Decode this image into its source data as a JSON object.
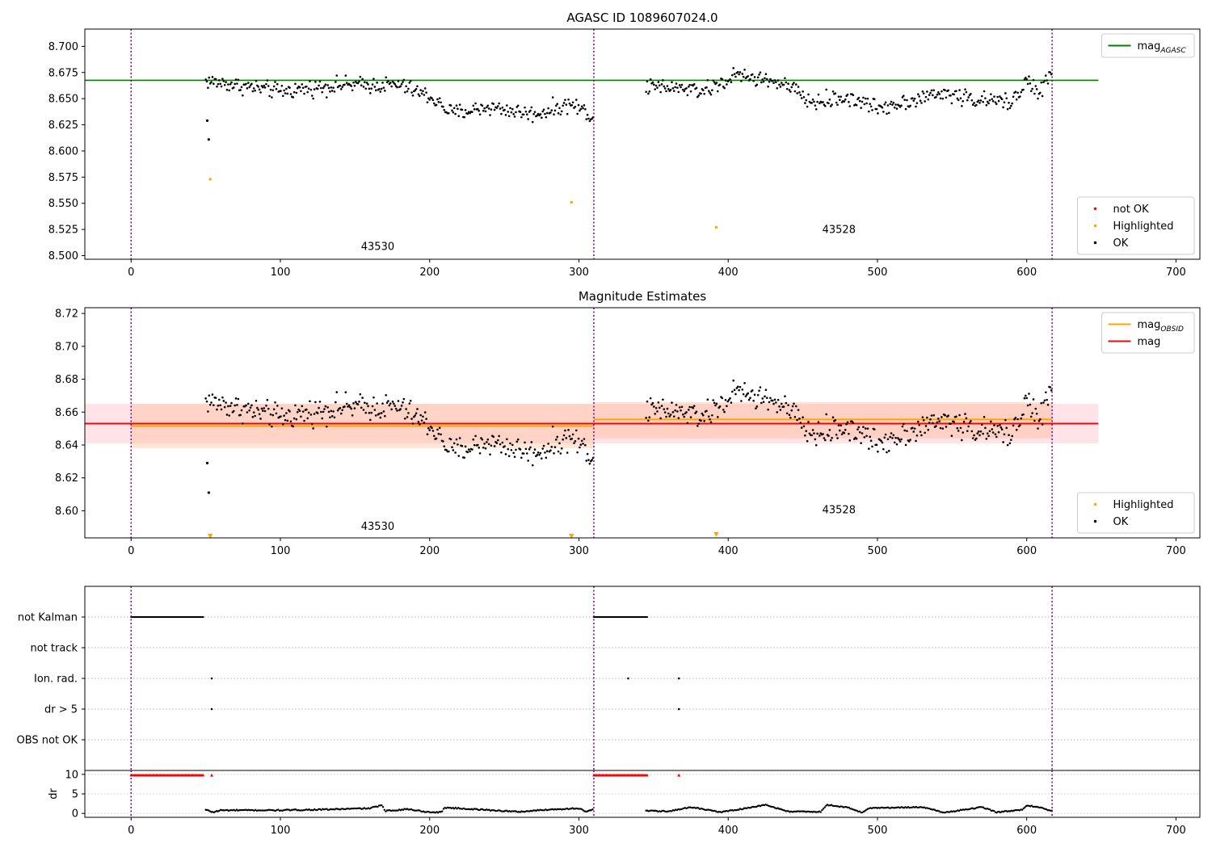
{
  "chart_data": [
    {
      "id": "top",
      "type": "scatter",
      "title": "AGASC ID 1089607024.0",
      "xlim": [
        -31,
        716
      ],
      "ylim": [
        8.4965,
        8.7165
      ],
      "x_ticks": [
        0,
        100,
        200,
        300,
        400,
        500,
        600,
        700
      ],
      "y_ticks": [
        8.5,
        8.525,
        8.55,
        8.575,
        8.6,
        8.625,
        8.65,
        8.675,
        8.7
      ],
      "y_tick_decimals": 3,
      "obs_boundaries": [
        0,
        310,
        617
      ],
      "obs_labels": [
        {
          "text": "43530",
          "x": 154,
          "y": 8.5055
        },
        {
          "text": "43528",
          "x": 463,
          "y": 8.5215
        }
      ],
      "lines": [
        {
          "name": "mag_AGASC",
          "y": 8.6675,
          "x_range": [
            -31,
            648
          ],
          "color": "#008000"
        }
      ],
      "bands": [],
      "highlighted_points": [
        [
          53,
          8.573
        ],
        [
          295,
          8.551
        ],
        [
          392,
          8.527
        ]
      ],
      "outliers_ok": [
        [
          51,
          8.629
        ],
        [
          52,
          8.611
        ]
      ],
      "highlighted_style": "dot",
      "legends": [
        {
          "position": "top-right",
          "items": [
            {
              "label": "mag",
              "sub": "AGASC",
              "marker": "line",
              "color": "#008000"
            }
          ]
        },
        {
          "position": "bottom-right",
          "items": [
            {
              "label": "not OK",
              "marker": "dot",
              "color": "#ff0000"
            },
            {
              "label": "Highlighted",
              "marker": "dot",
              "color": "#ffa500"
            },
            {
              "label": "OK",
              "marker": "dot",
              "color": "#000000"
            }
          ]
        }
      ],
      "series": [
        {
          "x_range": [
            50,
            310
          ],
          "knots": [
            [
              50,
              8.667
            ],
            [
              100,
              8.657
            ],
            [
              140,
              8.663
            ],
            [
              180,
              8.663
            ],
            [
              200,
              8.652
            ],
            [
              215,
              8.636
            ],
            [
              240,
              8.642
            ],
            [
              270,
              8.635
            ],
            [
              295,
              8.645
            ],
            [
              310,
              8.633
            ]
          ],
          "noise": 0.0055
        },
        {
          "x_range": [
            345,
            617
          ],
          "knots": [
            [
              345,
              8.661
            ],
            [
              365,
              8.66
            ],
            [
              385,
              8.657
            ],
            [
              405,
              8.672
            ],
            [
              430,
              8.667
            ],
            [
              445,
              8.658
            ],
            [
              455,
              8.646
            ],
            [
              480,
              8.651
            ],
            [
              500,
              8.641
            ],
            [
              520,
              8.648
            ],
            [
              545,
              8.655
            ],
            [
              570,
              8.648
            ],
            [
              590,
              8.647
            ],
            [
              600,
              8.668
            ],
            [
              608,
              8.654
            ],
            [
              617,
              8.676
            ]
          ],
          "noise": 0.0055
        }
      ]
    },
    {
      "id": "middle",
      "type": "scatter",
      "title": "Magnitude Estimates",
      "xlim": [
        -31,
        716
      ],
      "ylim": [
        8.5835,
        8.7235
      ],
      "x_ticks": [
        0,
        100,
        200,
        300,
        400,
        500,
        600,
        700
      ],
      "y_ticks": [
        8.6,
        8.62,
        8.64,
        8.66,
        8.68,
        8.7,
        8.72
      ],
      "y_tick_decimals": 2,
      "obs_boundaries": [
        0,
        310,
        617
      ],
      "obs_labels": [
        {
          "text": "43530",
          "x": 154,
          "y": 8.5885
        },
        {
          "text": "43528",
          "x": 463,
          "y": 8.5985
        }
      ],
      "lines": [
        {
          "name": "mag_OBSID_1",
          "y": 8.6515,
          "x_range": [
            0,
            310
          ],
          "color": "#ffa500"
        },
        {
          "name": "mag_OBSID_2",
          "y": 8.6555,
          "x_range": [
            310,
            617
          ],
          "color": "#ffa500"
        },
        {
          "name": "mag",
          "y": 8.653,
          "x_range": [
            -31,
            648
          ],
          "color": "#ff0000"
        }
      ],
      "bands": [
        {
          "y_range": [
            8.641,
            8.665
          ],
          "x_range": [
            -31,
            648
          ],
          "color": "#ffc0cb",
          "opacity": 0.45
        },
        {
          "y_range": [
            8.638,
            8.665
          ],
          "x_range": [
            0,
            310
          ],
          "color": "#ffb080",
          "opacity": 0.32
        },
        {
          "y_range": [
            8.644,
            8.666
          ],
          "x_range": [
            310,
            617
          ],
          "color": "#ffb080",
          "opacity": 0.35
        }
      ],
      "highlighted_points": [
        [
          53,
          8.5845
        ],
        [
          295,
          8.5845
        ],
        [
          392,
          8.5855
        ]
      ],
      "outliers_ok": [
        [
          51,
          8.629
        ],
        [
          52,
          8.611
        ]
      ],
      "highlighted_style": "triangle",
      "legends": [
        {
          "position": "top-right",
          "items": [
            {
              "label": "mag",
              "sub": "OBSID",
              "marker": "line",
              "color": "#ffa500"
            },
            {
              "label": "mag",
              "marker": "line",
              "color": "#ff0000"
            }
          ]
        },
        {
          "position": "bottom-right",
          "items": [
            {
              "label": "Highlighted",
              "marker": "dot",
              "color": "#ffa500"
            },
            {
              "label": "OK",
              "marker": "dot",
              "color": "#000000"
            }
          ]
        }
      ],
      "series": [
        {
          "x_range": [
            50,
            310
          ],
          "knots": [
            [
              50,
              8.667
            ],
            [
              100,
              8.657
            ],
            [
              140,
              8.663
            ],
            [
              180,
              8.663
            ],
            [
              200,
              8.652
            ],
            [
              215,
              8.636
            ],
            [
              240,
              8.642
            ],
            [
              270,
              8.635
            ],
            [
              295,
              8.645
            ],
            [
              310,
              8.633
            ]
          ],
          "noise": 0.0055
        },
        {
          "x_range": [
            345,
            617
          ],
          "knots": [
            [
              345,
              8.661
            ],
            [
              365,
              8.66
            ],
            [
              385,
              8.657
            ],
            [
              405,
              8.672
            ],
            [
              430,
              8.667
            ],
            [
              445,
              8.658
            ],
            [
              455,
              8.646
            ],
            [
              480,
              8.651
            ],
            [
              500,
              8.641
            ],
            [
              520,
              8.648
            ],
            [
              545,
              8.655
            ],
            [
              570,
              8.648
            ],
            [
              590,
              8.647
            ],
            [
              600,
              8.668
            ],
            [
              608,
              8.654
            ],
            [
              617,
              8.676
            ]
          ],
          "noise": 0.0055
        }
      ]
    },
    {
      "id": "flags",
      "type": "scatter",
      "xlim": [
        -31,
        716
      ],
      "categories": [
        "not Kalman",
        "not track",
        "Ion. rad.",
        "dr > 5",
        "OBS not OK"
      ],
      "obs_boundaries": [
        0,
        310,
        617
      ],
      "segments": [
        {
          "category": "not Kalman",
          "x_range": [
            0,
            49
          ]
        },
        {
          "category": "not Kalman",
          "x_range": [
            310,
            346
          ]
        }
      ],
      "points": [
        {
          "category": "Ion. rad.",
          "x": 54
        },
        {
          "category": "Ion. rad.",
          "x": 333
        },
        {
          "category": "Ion. rad.",
          "x": 367
        },
        {
          "category": "dr > 5",
          "x": 54
        },
        {
          "category": "dr > 5",
          "x": 367
        }
      ]
    },
    {
      "id": "dr",
      "type": "scatter",
      "xlim": [
        -31,
        716
      ],
      "ylim": [
        -1,
        11
      ],
      "ylabel": "dr",
      "x_ticks": [
        0,
        100,
        200,
        300,
        400,
        500,
        600,
        700
      ],
      "y_ticks": [
        0,
        5,
        10
      ],
      "obs_boundaries": [
        0,
        310,
        617
      ],
      "clipped_segments": [
        {
          "x_range": [
            0,
            49
          ],
          "y": 9.8,
          "color": "#ff0000"
        },
        {
          "x_range": [
            310,
            346
          ],
          "y": 9.8,
          "color": "#ff0000"
        }
      ],
      "clipped_points": [
        [
          54,
          9.8
        ],
        [
          367,
          9.8
        ]
      ],
      "series": [
        {
          "x_range": [
            50,
            310
          ],
          "knots": [
            [
              50,
              0.9
            ],
            [
              55,
              0.3
            ],
            [
              60,
              0.8
            ],
            [
              100,
              0.8
            ],
            [
              130,
              1.0
            ],
            [
              160,
              1.3
            ],
            [
              168,
              2.1
            ],
            [
              170,
              0.6
            ],
            [
              185,
              1.1
            ],
            [
              200,
              0.3
            ],
            [
              208,
              0.3
            ],
            [
              210,
              1.5
            ],
            [
              260,
              0.4
            ],
            [
              280,
              1.0
            ],
            [
              300,
              1.3
            ],
            [
              305,
              0.4
            ],
            [
              310,
              1.0
            ]
          ],
          "noise": 0.15
        },
        {
          "x_range": [
            345,
            617
          ],
          "knots": [
            [
              345,
              0.7
            ],
            [
              360,
              0.5
            ],
            [
              375,
              1.6
            ],
            [
              395,
              0.3
            ],
            [
              415,
              1.5
            ],
            [
              425,
              2.2
            ],
            [
              430,
              1.6
            ],
            [
              440,
              0.5
            ],
            [
              462,
              0.4
            ],
            [
              466,
              2.2
            ],
            [
              480,
              1.5
            ],
            [
              490,
              0.2
            ],
            [
              495,
              1.4
            ],
            [
              530,
              1.6
            ],
            [
              545,
              0.2
            ],
            [
              570,
              1.6
            ],
            [
              580,
              0.3
            ],
            [
              597,
              0.9
            ],
            [
              600,
              2.1
            ],
            [
              610,
              1.4
            ],
            [
              617,
              0.6
            ]
          ],
          "noise": 0.12
        }
      ]
    }
  ]
}
